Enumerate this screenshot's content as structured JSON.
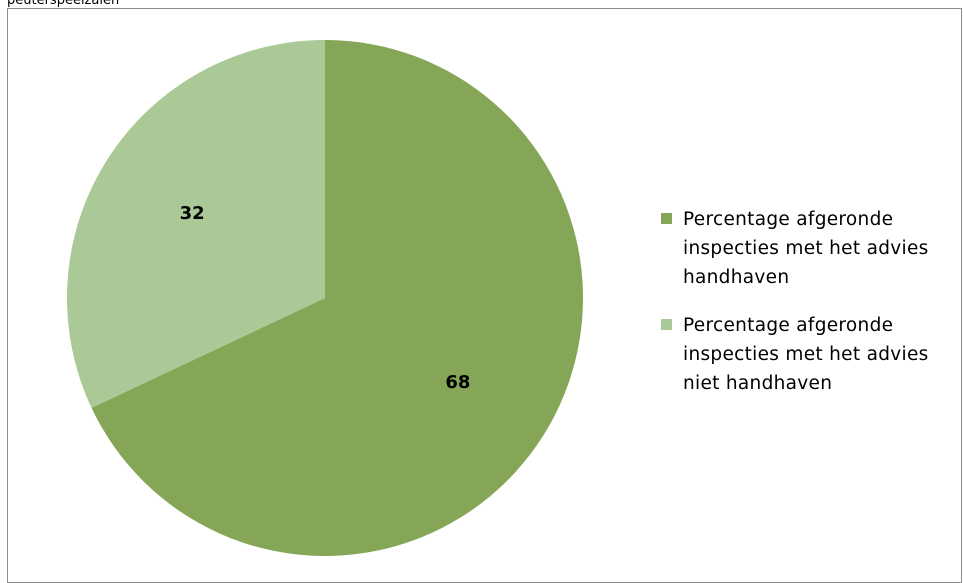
{
  "header": {
    "text": "peuterspeelzalen"
  },
  "colors": {
    "handhaven": "#84a656",
    "niet_handhaven": "#aac996",
    "frame": "#8c8c8c"
  },
  "chart_data": {
    "type": "pie",
    "slices": [
      {
        "label": "Percentage afgeronde inspecties met het advies handhaven",
        "value": 68,
        "color": "#84a656"
      },
      {
        "label": "Percentage afgeronde inspecties met het advies niet handhaven",
        "value": 32,
        "color": "#aac996"
      }
    ],
    "legend_lines": [
      [
        "Percentage afgeronde",
        "inspecties met het advies",
        "handhaven"
      ],
      [
        "Percentage afgeronde",
        "inspecties met het advies",
        "niet handhaven"
      ]
    ],
    "legend_position": "right",
    "start": "12 o'clock",
    "direction": "clockwise"
  }
}
